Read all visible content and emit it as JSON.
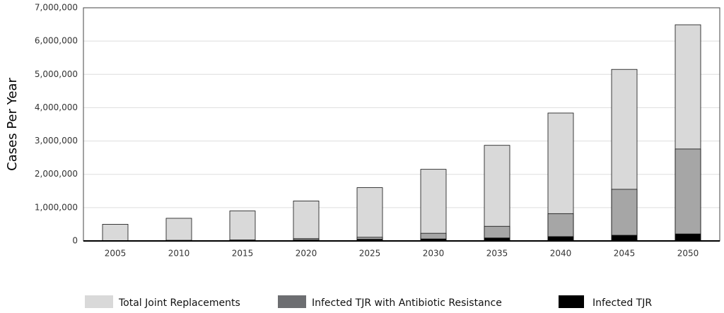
{
  "chart_data": {
    "type": "bar",
    "mode": "overlay",
    "y_axis_label": "Cases Per Year",
    "categories": [
      "2005",
      "2010",
      "2015",
      "2020",
      "2025",
      "2030",
      "2035",
      "2040",
      "2045",
      "2050"
    ],
    "series": [
      {
        "name": "Total Joint Replacements",
        "color": "#d9d9d9",
        "legend_color": "#d9d9d9",
        "values": [
          500000,
          680000,
          900000,
          1200000,
          1600000,
          2150000,
          2870000,
          3840000,
          5150000,
          6490000
        ]
      },
      {
        "name": "Infected TJR with Antibiotic Resistance",
        "color": "#a6a6a6",
        "legend_color": "#6d6e71",
        "values": [
          3000,
          20000,
          30000,
          70000,
          110000,
          230000,
          440000,
          820000,
          1550000,
          2760000
        ]
      },
      {
        "name": "Infected TJR",
        "color": "#000000",
        "legend_color": "#000000",
        "values": [
          5000,
          10000,
          20000,
          30000,
          50000,
          60000,
          90000,
          130000,
          170000,
          210000
        ]
      }
    ],
    "ylim": [
      0,
      7000000
    ],
    "yticks": [
      0,
      {
        "value": 1000000,
        "label": "1,000,000"
      },
      {
        "value": 2000000,
        "label": "2,000,000"
      },
      {
        "value": 3000000,
        "label": "3,000,000"
      },
      {
        "value": 4000000,
        "label": "4,000,000"
      },
      {
        "value": 5000000,
        "label": "5,000,000"
      },
      {
        "value": 6000000,
        "label": "6,000,000"
      },
      {
        "value": 7000000,
        "label": "7,000,000"
      }
    ],
    "grid": true,
    "legend": "bottom"
  }
}
